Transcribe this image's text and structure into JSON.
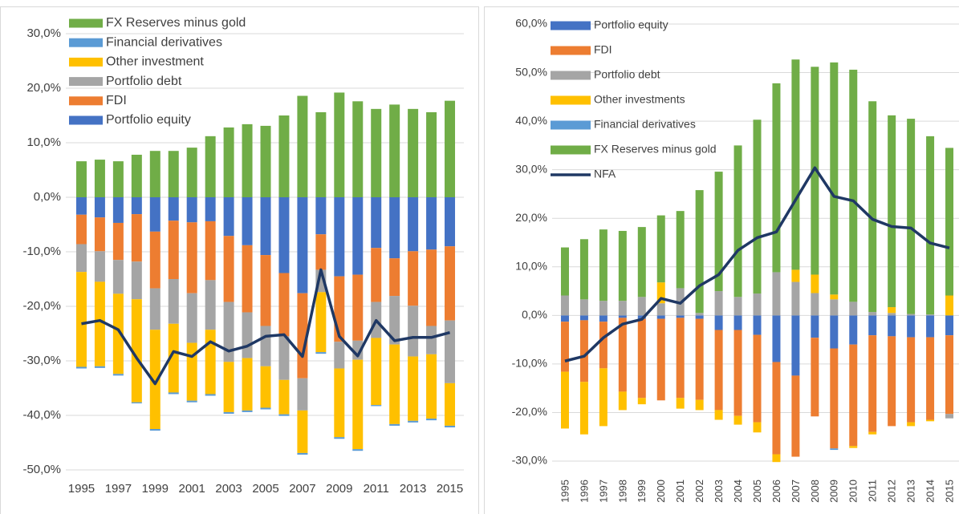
{
  "chart_data": [
    {
      "type": "bar",
      "stacked": true,
      "legend": "top-left",
      "legend_reversed": true,
      "grid": true,
      "categories": [
        "1995",
        null,
        "1997",
        null,
        "1999",
        null,
        "2001",
        null,
        "2003",
        null,
        "2005",
        null,
        "2007",
        null,
        "2009",
        null,
        "2011",
        null,
        "2013",
        null,
        "2015"
      ],
      "ylim": [
        -50,
        30
      ],
      "yticks": [
        {
          "value": -50,
          "label": "-50,0%"
        },
        {
          "value": -40,
          "label": "-40,0%"
        },
        {
          "value": -30,
          "label": "-30,0%"
        },
        {
          "value": -20,
          "label": "-20,0%"
        },
        {
          "value": -10,
          "label": "-10,0%"
        },
        {
          "value": 0,
          "label": "0,0%"
        },
        {
          "value": 10,
          "label": "10,0%"
        },
        {
          "value": 20,
          "label": "20,0%"
        },
        {
          "value": 30,
          "label": "30,0%"
        }
      ],
      "series": [
        {
          "name": "Portfolio equity",
          "color": "#4472c4",
          "values": [
            -3.2,
            -3.7,
            -4.7,
            -3.1,
            -6.3,
            -4.3,
            -4.6,
            -4.4,
            -7.1,
            -8.8,
            -10.6,
            -13.9,
            -17.6,
            -6.8,
            -14.5,
            -14.2,
            -9.3,
            -11.2,
            -9.9,
            -9.6,
            -9.0
          ]
        },
        {
          "name": "FDI",
          "color": "#ed7d31",
          "values": [
            -5.4,
            -6.2,
            -6.8,
            -8.7,
            -10.4,
            -10.7,
            -13.0,
            -10.8,
            -12.1,
            -12.3,
            -13.0,
            -11.6,
            -15.6,
            -6.5,
            -12.0,
            -12.1,
            -9.9,
            -6.9,
            -10.0,
            -14.0,
            -13.6
          ]
        },
        {
          "name": "Portfolio debt",
          "color": "#a5a5a5",
          "values": [
            -5.1,
            -5.6,
            -6.2,
            -6.9,
            -7.6,
            -8.2,
            -9.1,
            -9.1,
            -11.0,
            -8.4,
            -7.4,
            -8.0,
            -5.9,
            -4.1,
            -4.9,
            -3.5,
            -6.6,
            -8.9,
            -9.3,
            -5.2,
            -11.5
          ]
        },
        {
          "name": "Other investment",
          "color": "#ffc000",
          "values": [
            -17.4,
            -15.5,
            -14.7,
            -18.9,
            -18.2,
            -12.6,
            -10.6,
            -11.8,
            -9.2,
            -9.6,
            -7.6,
            -6.3,
            -7.8,
            -11.0,
            -12.6,
            -16.4,
            -12.3,
            -14.6,
            -11.8,
            -11.8,
            -7.8
          ]
        },
        {
          "name": "Financial derivatives",
          "color": "#5b9bd5",
          "values": [
            -0.3,
            -0.3,
            -0.3,
            -0.2,
            -0.3,
            -0.3,
            -0.3,
            -0.3,
            -0.3,
            -0.3,
            -0.3,
            -0.3,
            -0.3,
            -0.3,
            -0.3,
            -0.3,
            -0.2,
            -0.3,
            -0.3,
            -0.3,
            -0.3
          ]
        },
        {
          "name": "FX Reserves minus gold",
          "color": "#70ad47",
          "values": [
            6.6,
            6.9,
            6.6,
            7.8,
            8.5,
            8.5,
            9.1,
            11.2,
            12.8,
            13.4,
            13.1,
            15.0,
            18.6,
            15.6,
            19.2,
            17.6,
            16.2,
            17.0,
            16.2,
            15.6,
            17.7
          ]
        },
        {
          "type": "line",
          "color": "#1f3864",
          "values": [
            -23.2,
            -22.6,
            -24.3,
            -29.5,
            -34.2,
            -28.3,
            -29.2,
            -26.5,
            -28.2,
            -27.3,
            -25.5,
            -25.2,
            -29.2,
            -13.3,
            -25.5,
            -29.1,
            -22.6,
            -26.3,
            -25.7,
            -25.7,
            -24.8
          ]
        }
      ]
    },
    {
      "type": "bar",
      "stacked": true,
      "legend": "top-left",
      "legend_reversed": false,
      "grid": true,
      "categories": [
        "1995",
        "1996",
        "1997",
        "1998",
        "1999",
        "2000",
        "2001",
        "2002",
        "2003",
        "2004",
        "2005",
        "2006",
        "2007",
        "2008",
        "2009",
        "2010",
        "2011",
        "2012",
        "2013",
        "2014",
        "2015"
      ],
      "ylim": [
        -30,
        60
      ],
      "yticks": [
        {
          "value": -30,
          "label": "-30,0%"
        },
        {
          "value": -20,
          "label": "-20,0%"
        },
        {
          "value": -10,
          "label": "-10,0%"
        },
        {
          "value": 0,
          "label": "0,0%"
        },
        {
          "value": 10,
          "label": "10,0%"
        },
        {
          "value": 20,
          "label": "20,0%"
        },
        {
          "value": 30,
          "label": "30,0%"
        },
        {
          "value": 40,
          "label": "40,0%"
        },
        {
          "value": 50,
          "label": "50,0%"
        },
        {
          "value": 60,
          "label": "60,0%"
        }
      ],
      "series": [
        {
          "name": "Portfolio equity",
          "color": "#4472c4",
          "values": [
            -1.3,
            -1.0,
            -1.3,
            -0.5,
            -0.7,
            -0.7,
            -0.5,
            -0.7,
            -3.0,
            -3.0,
            -4.0,
            -9.6,
            -12.4,
            -4.6,
            -6.8,
            -6.0,
            -4.1,
            -4.3,
            -4.5,
            -4.5,
            -4.1
          ]
        },
        {
          "name": "FDI",
          "color": "#ed7d31",
          "values": [
            -10.3,
            -12.7,
            -9.6,
            -15.2,
            -16.3,
            -16.8,
            -16.5,
            -16.7,
            -16.5,
            -17.7,
            -18.0,
            -19.0,
            -16.7,
            -16.2,
            -20.6,
            -20.9,
            -19.9,
            -18.5,
            -17.5,
            -17.0,
            -16.2
          ]
        },
        {
          "name": "Portfolio debt",
          "color": "#a5a5a5",
          "values": [
            4.1,
            3.3,
            3.0,
            3.0,
            3.8,
            2.5,
            5.6,
            0.5,
            5.0,
            3.8,
            4.5,
            8.9,
            6.9,
            4.6,
            3.3,
            2.8,
            0.7,
            0.5,
            0.3,
            0.2,
            -0.9
          ]
        },
        {
          "name": "Other investments",
          "color": "#ffc000",
          "values": [
            -11.7,
            -10.8,
            -11.9,
            -3.8,
            -1.3,
            4.3,
            -2.2,
            -2.1,
            -2.0,
            -1.8,
            -2.1,
            -1.6,
            2.5,
            3.8,
            1.0,
            -0.4,
            -0.5,
            1.2,
            -0.8,
            -0.3,
            4.1
          ]
        },
        {
          "name": "Financial derivatives",
          "color": "#5b9bd5",
          "values": [
            0,
            0,
            0,
            0,
            0,
            0,
            0,
            0,
            0,
            0,
            0,
            0,
            0,
            0,
            -0.3,
            0,
            0,
            0,
            0,
            0,
            0
          ]
        },
        {
          "name": "FX Reserves minus gold",
          "color": "#70ad47",
          "values": [
            9.9,
            12.4,
            14.7,
            14.4,
            14.4,
            13.8,
            15.9,
            25.3,
            24.6,
            31.2,
            35.8,
            38.9,
            43.3,
            42.8,
            47.8,
            47.8,
            43.4,
            39.5,
            40.2,
            36.7,
            30.4
          ]
        },
        {
          "name": "NFA",
          "type": "line",
          "color": "#1f3864",
          "values": [
            -9.4,
            -8.4,
            -4.6,
            -1.8,
            -0.8,
            3.5,
            2.5,
            6.1,
            8.4,
            13.4,
            16.0,
            17.2,
            23.8,
            30.4,
            24.5,
            23.6,
            19.8,
            18.3,
            18.0,
            14.9,
            13.9
          ]
        }
      ]
    }
  ]
}
